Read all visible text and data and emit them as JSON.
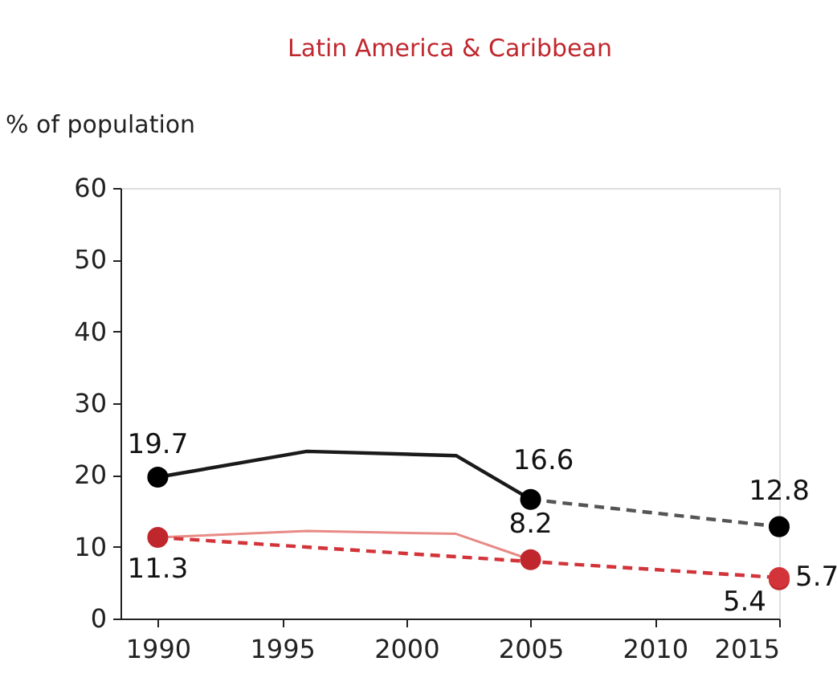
{
  "chart_data": {
    "type": "line",
    "title": "Latin America & Caribbean",
    "ylabel": "% of population",
    "xlim": [
      1988.5,
      2015
    ],
    "xticks": [
      1990,
      1995,
      2000,
      2005,
      2010,
      2015
    ],
    "ylim": [
      0,
      60
    ],
    "yticks": [
      0,
      10,
      20,
      30,
      40,
      50,
      60
    ],
    "grid": false,
    "series": [
      {
        "color": "#1a1a1a",
        "line_style": "solid",
        "marker": "none",
        "x": [
          1990,
          1996,
          2002,
          2005
        ],
        "values": [
          19.7,
          23.3,
          22.7,
          16.6
        ]
      },
      {
        "color": "#555555",
        "line_style": "dashed",
        "marker": "none",
        "x": [
          2005,
          2015
        ],
        "values": [
          16.6,
          12.8
        ]
      },
      {
        "color": "#e88a86",
        "line_style": "solid",
        "marker": "none",
        "x": [
          1990,
          1996,
          2002,
          2005
        ],
        "values": [
          11.3,
          12.2,
          11.8,
          8.2
        ]
      },
      {
        "color": "#d2343a",
        "line_style": "dashed",
        "marker": "none",
        "x": [
          1990,
          2015
        ],
        "values": [
          11.3,
          5.7
        ]
      },
      {
        "type": "scatter",
        "color": "#000000",
        "marker": "circle",
        "x": [
          1990,
          2005,
          2015
        ],
        "values": [
          19.7,
          16.6,
          12.8
        ],
        "value_labels": [
          "19.7",
          "16.6",
          "12.8"
        ]
      },
      {
        "type": "scatter",
        "color": "#c0272d",
        "marker": "circle",
        "x": [
          1990,
          2005,
          2015
        ],
        "values": [
          11.3,
          8.2,
          5.4
        ],
        "value_labels": [
          "11.3",
          "8.2",
          "5.4"
        ]
      },
      {
        "type": "scatter",
        "color": "#d2343a",
        "marker": "circle",
        "x": [
          2015
        ],
        "values": [
          5.7
        ],
        "value_labels": [
          "5.7"
        ]
      }
    ]
  }
}
